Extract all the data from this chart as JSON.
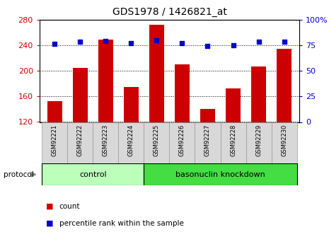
{
  "title": "GDS1978 / 1426821_at",
  "samples": [
    "GSM92221",
    "GSM92222",
    "GSM92223",
    "GSM92224",
    "GSM92225",
    "GSM92226",
    "GSM92227",
    "GSM92228",
    "GSM92229",
    "GSM92230"
  ],
  "counts": [
    153,
    205,
    249,
    175,
    272,
    210,
    140,
    172,
    207,
    234
  ],
  "percentile_ranks": [
    76,
    78,
    79,
    77,
    80,
    77,
    74,
    75,
    78,
    78
  ],
  "ylim_left": [
    120,
    280
  ],
  "ylim_right": [
    0,
    100
  ],
  "yticks_left": [
    120,
    160,
    200,
    240,
    280
  ],
  "yticks_right": [
    0,
    25,
    50,
    75,
    100
  ],
  "bar_color": "#cc0000",
  "dot_color": "#0000cc",
  "bar_bottom": 120,
  "groups": [
    {
      "label": "control",
      "start": 0,
      "end": 4,
      "color": "#bbffbb"
    },
    {
      "label": "basonuclin knockdown",
      "start": 4,
      "end": 10,
      "color": "#44dd44"
    }
  ],
  "protocol_label": "protocol",
  "legend_count_label": "count",
  "legend_pct_label": "percentile rank within the sample",
  "gridline_color": "black",
  "gridline_style": "dotted",
  "tick_label_color_left": "#cc0000",
  "tick_label_color_right": "#0000cc",
  "bg_color": "#d8d8d8",
  "plot_bg": "#ffffff"
}
